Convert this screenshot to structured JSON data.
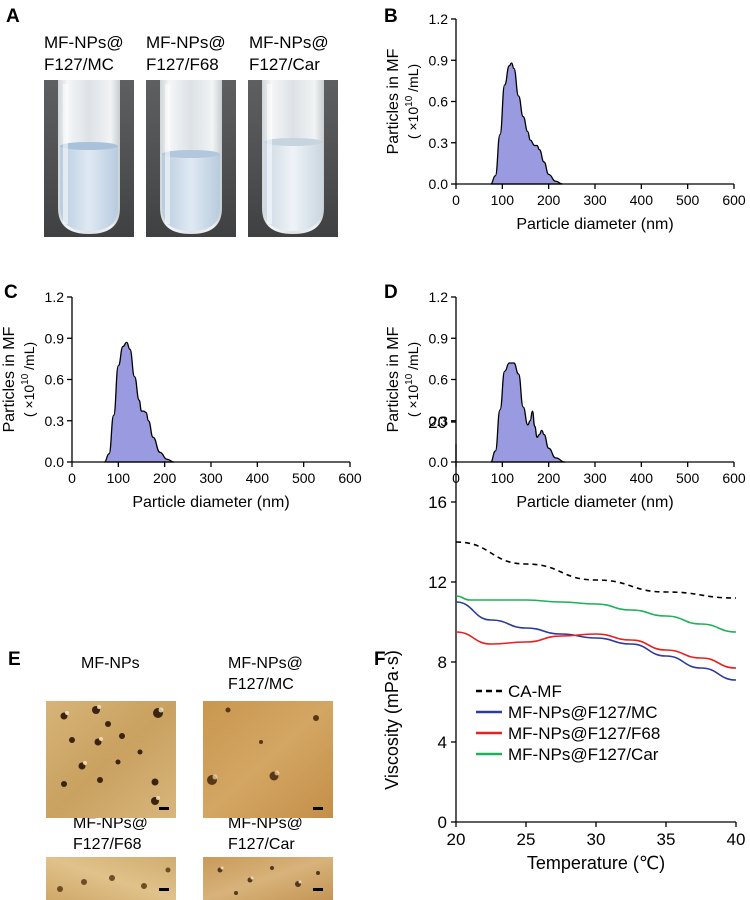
{
  "panels": {
    "A": {
      "letter": "A",
      "tube_labels": [
        [
          "MF-NPs@",
          "F127/MC"
        ],
        [
          "MF-NPs@",
          "F127/F68"
        ],
        [
          "MF-NPs@",
          "F127/Car"
        ]
      ]
    },
    "E": {
      "letter": "E",
      "image_labels": [
        [
          "MF-NPs"
        ],
        [
          "MF-NPs@",
          "F127/MC"
        ],
        [
          "MF-NPs@",
          "F127/F68"
        ],
        [
          "MF-NPs@",
          "F127/Car"
        ]
      ]
    }
  },
  "chart_data": [
    {
      "panel": "B",
      "type": "area",
      "xlabel": "Particle diameter (nm)",
      "ylabel_line1": "Particles in MF",
      "ylabel_line2_pre": "( ×10",
      "ylabel_line2_sup": "10",
      "ylabel_line2_post": " /mL)",
      "xlim": [
        0,
        600
      ],
      "ylim": [
        0,
        1.2
      ],
      "xticks": [
        "0",
        "100",
        "200",
        "300",
        "400",
        "500",
        "600"
      ],
      "yticks": [
        "0.0",
        "0.3",
        "0.6",
        "0.9",
        "1.2"
      ],
      "fill_color": "#9a9ae0",
      "x": [
        75,
        85,
        95,
        105,
        115,
        120,
        125,
        135,
        145,
        155,
        160,
        170,
        175,
        180,
        190,
        200,
        215,
        230
      ],
      "y": [
        0.0,
        0.06,
        0.36,
        0.72,
        0.86,
        0.88,
        0.84,
        0.64,
        0.49,
        0.38,
        0.32,
        0.28,
        0.28,
        0.25,
        0.16,
        0.07,
        0.02,
        0.0
      ]
    },
    {
      "panel": "C",
      "type": "area",
      "xlabel": "Particle diameter (nm)",
      "ylabel_line1": "Particles in MF",
      "ylabel_line2_pre": "( ×10",
      "ylabel_line2_sup": "10",
      "ylabel_line2_post": " /mL)",
      "xlim": [
        0,
        600
      ],
      "ylim": [
        0,
        1.2
      ],
      "xticks": [
        "0",
        "100",
        "200",
        "300",
        "400",
        "500",
        "600"
      ],
      "yticks": [
        "0.0",
        "0.3",
        "0.6",
        "0.9",
        "1.2"
      ],
      "fill_color": "#9a9ae0",
      "x": [
        70,
        80,
        90,
        100,
        110,
        118,
        125,
        135,
        145,
        150,
        155,
        160,
        165,
        175,
        190,
        205,
        220
      ],
      "y": [
        0.0,
        0.06,
        0.34,
        0.7,
        0.84,
        0.87,
        0.82,
        0.62,
        0.45,
        0.37,
        0.37,
        0.36,
        0.3,
        0.18,
        0.07,
        0.02,
        0.0
      ]
    },
    {
      "panel": "D",
      "type": "area",
      "xlabel": "Particle diameter (nm)",
      "ylabel_line1": "Particles in MF",
      "ylabel_line2_pre": "( ×10",
      "ylabel_line2_sup": "10",
      "ylabel_line2_post": " /mL)",
      "xlim": [
        0,
        600
      ],
      "ylim": [
        0,
        1.2
      ],
      "xticks": [
        "0",
        "100",
        "200",
        "300",
        "400",
        "500",
        "600"
      ],
      "yticks": [
        "0.0",
        "0.3",
        "0.6",
        "0.9",
        "1.2"
      ],
      "fill_color": "#9a9ae0",
      "x": [
        75,
        85,
        95,
        105,
        115,
        125,
        135,
        145,
        155,
        160,
        165,
        170,
        175,
        180,
        185,
        190,
        200,
        215,
        235
      ],
      "y": [
        0.0,
        0.08,
        0.38,
        0.66,
        0.72,
        0.72,
        0.64,
        0.4,
        0.27,
        0.3,
        0.37,
        0.26,
        0.18,
        0.2,
        0.23,
        0.2,
        0.1,
        0.03,
        0.0
      ]
    },
    {
      "panel": "F",
      "type": "line",
      "xlabel": "Temperature (℃)",
      "ylabel": "Viscosity (mPa·s)",
      "xlim": [
        20,
        40
      ],
      "ylim": [
        0,
        20
      ],
      "xticks": [
        "20",
        "25",
        "30",
        "35",
        "40"
      ],
      "yticks": [
        "0",
        "4",
        "8",
        "12",
        "16",
        "20"
      ],
      "legend_position": "top-left",
      "series": [
        {
          "name": "CA-MF",
          "color": "#000000",
          "dashed": true,
          "x": [
            20,
            25,
            30,
            35,
            40
          ],
          "y": [
            14.0,
            12.9,
            12.1,
            11.5,
            11.2
          ]
        },
        {
          "name": "MF-NPs@F127/MC",
          "color": "#2b3a9c",
          "dashed": false,
          "x": [
            20,
            22.5,
            25,
            27.5,
            30,
            32.5,
            35,
            37.5,
            40
          ],
          "y": [
            11.0,
            10.1,
            9.7,
            9.4,
            9.2,
            8.9,
            8.3,
            7.7,
            7.1
          ]
        },
        {
          "name": "MF-NPs@F127/F68",
          "color": "#e8201f",
          "dashed": false,
          "x": [
            20,
            22.5,
            25,
            27.5,
            30,
            32.5,
            35,
            37.5,
            40
          ],
          "y": [
            9.5,
            8.9,
            9.0,
            9.3,
            9.4,
            9.1,
            8.6,
            8.2,
            7.7
          ]
        },
        {
          "name": "MF-NPs@F127/Car",
          "color": "#1fb05a",
          "dashed": false,
          "x": [
            20,
            21,
            25,
            27.5,
            30,
            32.5,
            35,
            37.5,
            40
          ],
          "y": [
            11.3,
            11.1,
            11.1,
            11.0,
            10.9,
            10.6,
            10.3,
            9.9,
            9.5
          ]
        }
      ]
    }
  ]
}
